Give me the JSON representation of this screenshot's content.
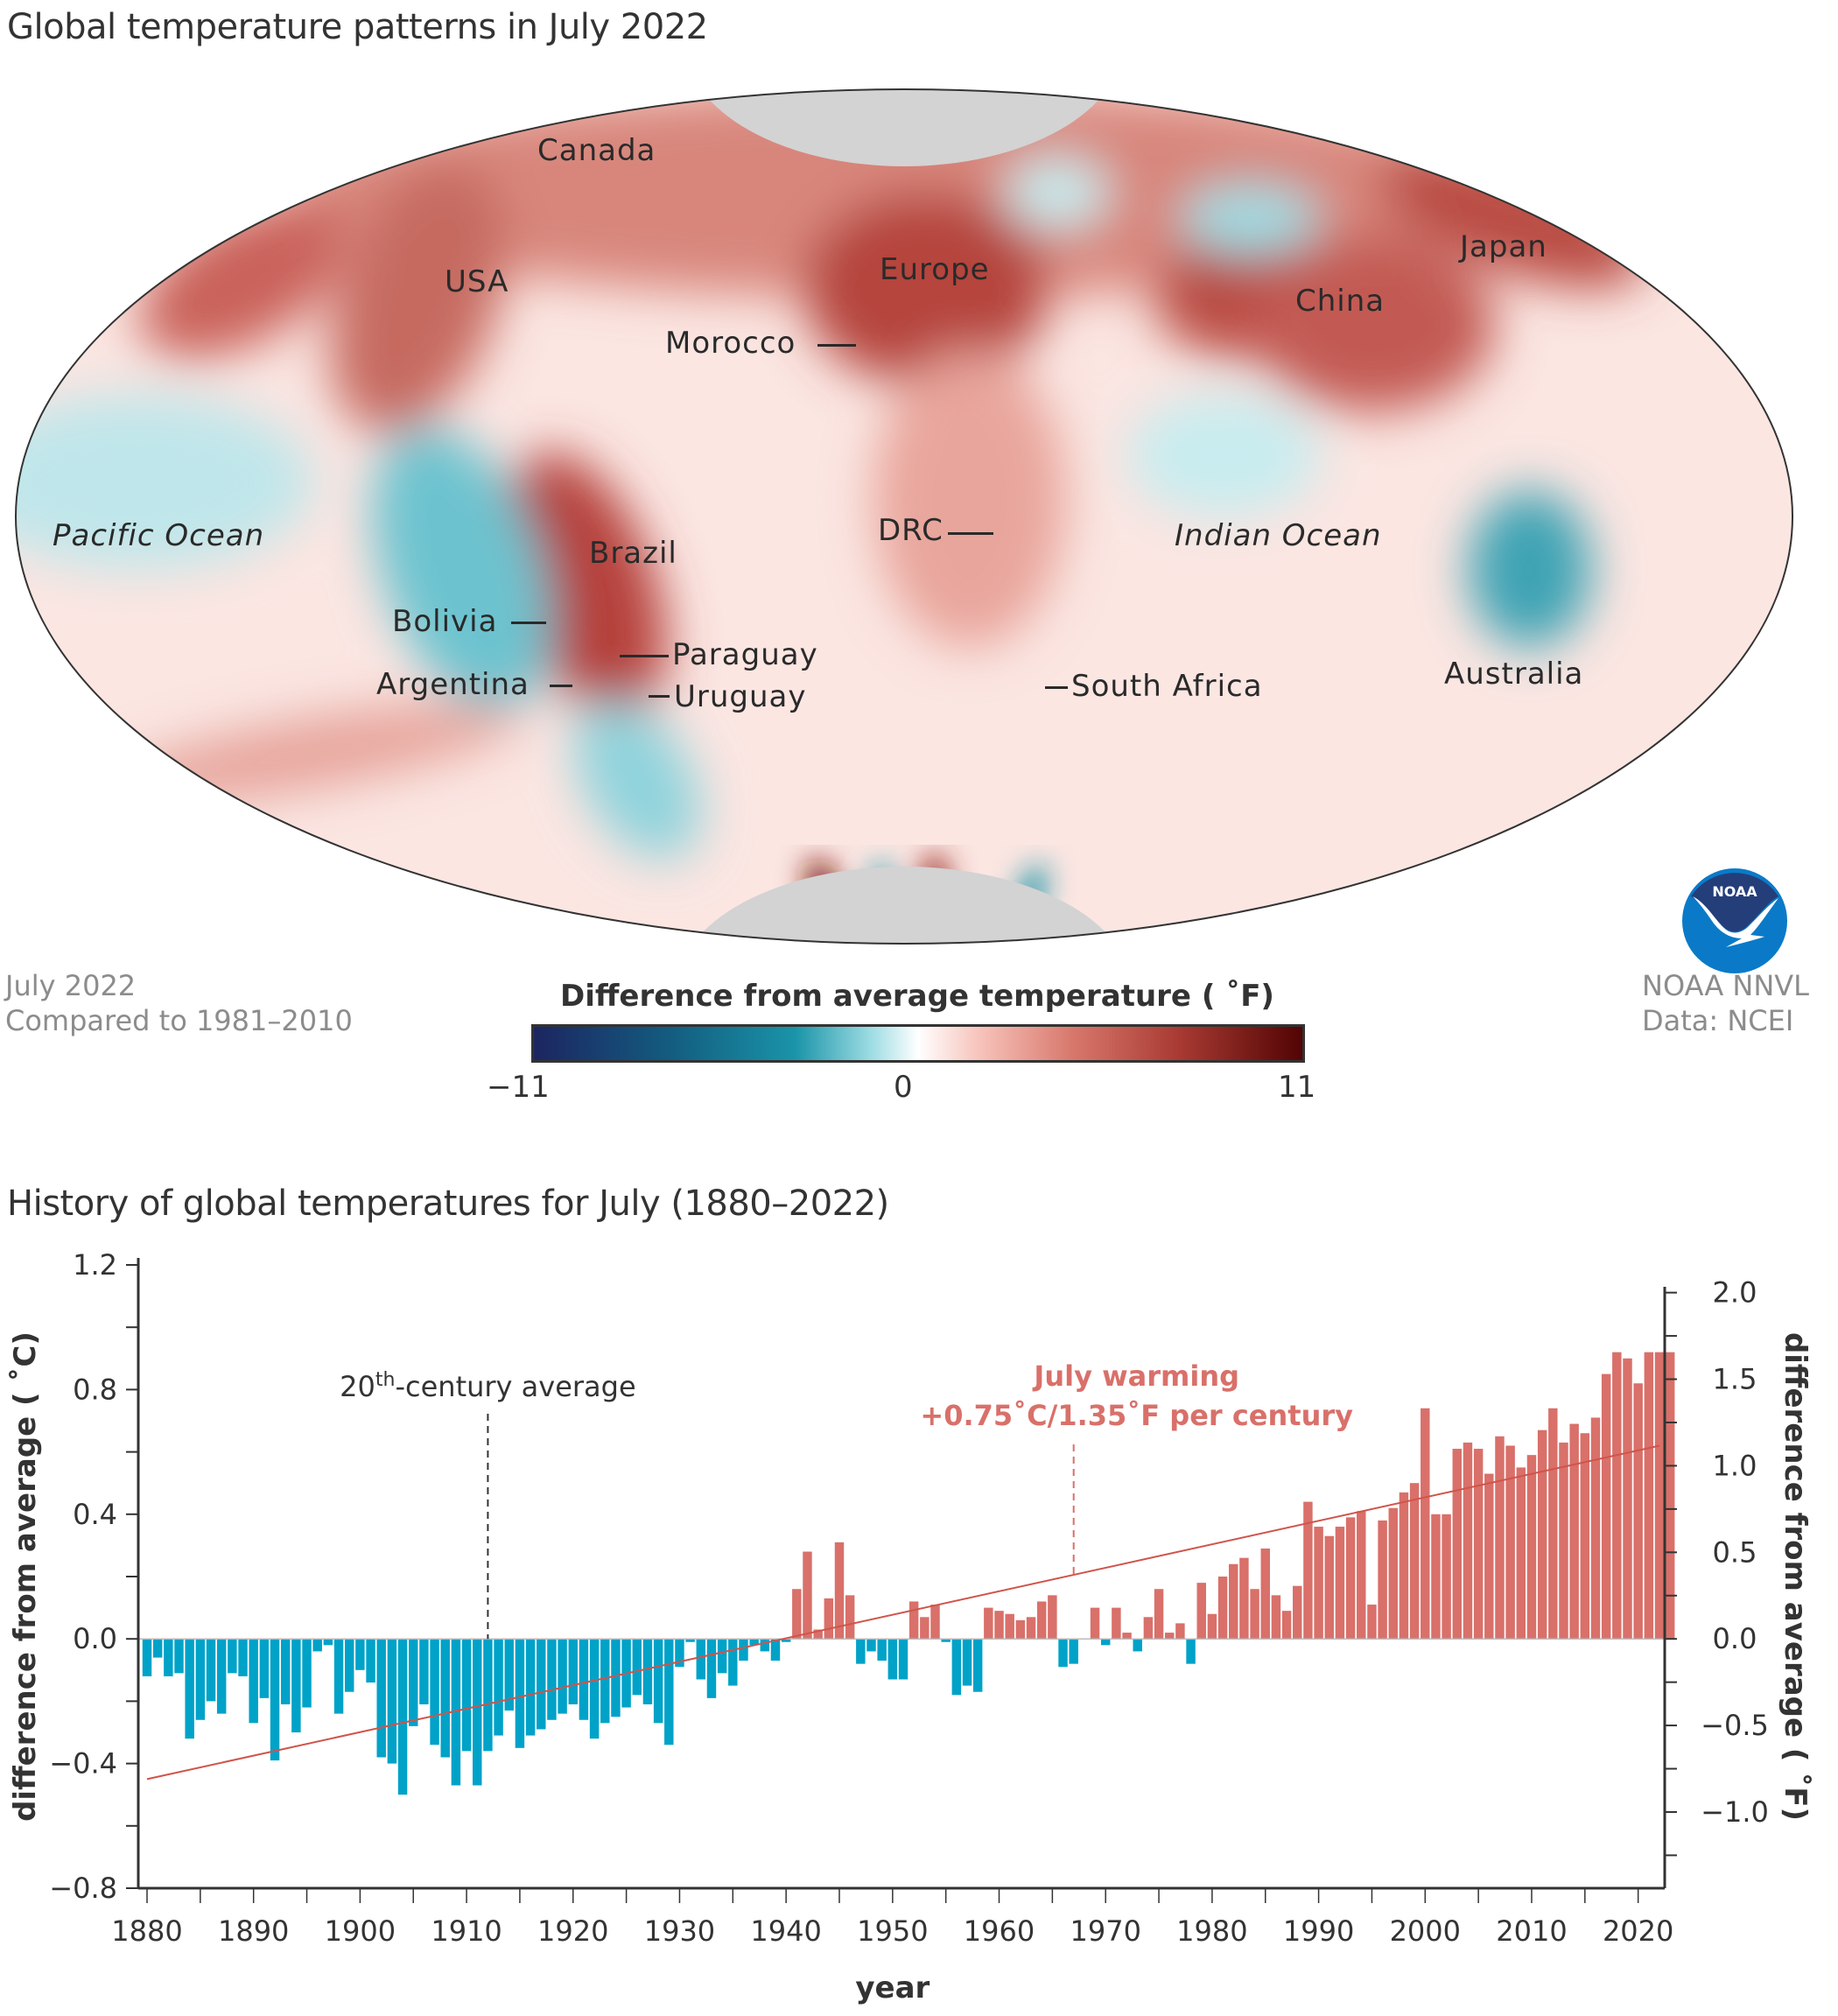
{
  "map": {
    "title": "Global temperature patterns in July 2022",
    "labels": [
      {
        "text": "Canada",
        "kind": "country",
        "leader": "none"
      },
      {
        "text": "USA",
        "kind": "country",
        "leader": "none"
      },
      {
        "text": "Europe",
        "kind": "region",
        "leader": "none"
      },
      {
        "text": "Morocco",
        "kind": "country",
        "leader": "right"
      },
      {
        "text": "China",
        "kind": "country",
        "leader": "none"
      },
      {
        "text": "Japan",
        "kind": "country",
        "leader": "none"
      },
      {
        "text": "Pacific Ocean",
        "kind": "ocean",
        "leader": "none"
      },
      {
        "text": "Brazil",
        "kind": "country",
        "leader": "none"
      },
      {
        "text": "DRC",
        "kind": "country",
        "leader": "right"
      },
      {
        "text": "Indian Ocean",
        "kind": "ocean",
        "leader": "none"
      },
      {
        "text": "Bolivia",
        "kind": "country",
        "leader": "right"
      },
      {
        "text": "Paraguay",
        "kind": "country",
        "leader": "left"
      },
      {
        "text": "Argentina",
        "kind": "country",
        "leader": "right"
      },
      {
        "text": "Uruguay",
        "kind": "country",
        "leader": "left"
      },
      {
        "text": "South Africa",
        "kind": "country",
        "leader": "left"
      },
      {
        "text": "Australia",
        "kind": "country",
        "leader": "none"
      }
    ],
    "footnote_left": [
      "July 2022",
      "Compared to 1981–2010"
    ],
    "footnote_right": [
      "NOAA NNVL",
      "Data: NCEI"
    ],
    "logo_text": "NOAA",
    "legend": {
      "title": "Difference from average temperature ( ˚F)",
      "min_label": "−11",
      "mid_label": "0",
      "max_label": "11",
      "range": [
        -11,
        11
      ],
      "colors": [
        "#1c2560",
        "#135d80",
        "#1a94a8",
        "#9fdde4",
        "#ffffff",
        "#f7c3bb",
        "#d8786c",
        "#a83a32",
        "#520404"
      ]
    },
    "polar_nodata_color": "#d3d3d3"
  },
  "chart_data": {
    "type": "bar",
    "title": "History of global temperatures for July (1880–2022)",
    "xlabel": "year",
    "ylabel": "difference from average ( ˚C)",
    "ylabel_right": "difference from average ( ˚F)",
    "xlim": [
      1880,
      2022
    ],
    "ylim": [
      -0.8,
      1.2
    ],
    "ylim_right": [
      -1.44,
      2.16
    ],
    "yticks": [
      "1.2",
      "0.8",
      "0.4",
      "0.0",
      "−0.4",
      "−0.8"
    ],
    "yticks_right": [
      "2.0",
      "1.5",
      "1.0",
      "0.5",
      "0.0",
      "−0.5",
      "−1.0"
    ],
    "xticks": [
      "1880",
      "1890",
      "1900",
      "1910",
      "1920",
      "1930",
      "1940",
      "1950",
      "1960",
      "1970",
      "1980",
      "1990",
      "2000",
      "2010",
      "2020"
    ],
    "colors": {
      "positive": "#d9706a",
      "negative": "#00a2c8",
      "trend": "#d0544a",
      "annotation": "#d9706a"
    },
    "trend": {
      "start_year": 1880,
      "start_value": -0.45,
      "end_year": 2022,
      "end_value": 0.62
    },
    "annotations": [
      {
        "text_pre": "20",
        "text_sup": "th",
        "text_post": "-century average",
        "year": 1912,
        "color": "#333333"
      },
      {
        "line1": "July warming",
        "line2": "+0.75˚C/1.35˚F per century",
        "year": 1967,
        "color": "#d9706a"
      }
    ],
    "start_year": 1880,
    "values": [
      -0.12,
      -0.06,
      -0.12,
      -0.11,
      -0.32,
      -0.26,
      -0.2,
      -0.24,
      -0.11,
      -0.12,
      -0.27,
      -0.19,
      -0.39,
      -0.21,
      -0.3,
      -0.22,
      -0.04,
      -0.02,
      -0.24,
      -0.17,
      -0.1,
      -0.14,
      -0.38,
      -0.4,
      -0.5,
      -0.28,
      -0.21,
      -0.34,
      -0.38,
      -0.47,
      -0.36,
      -0.47,
      -0.36,
      -0.31,
      -0.23,
      -0.35,
      -0.31,
      -0.29,
      -0.26,
      -0.24,
      -0.21,
      -0.26,
      -0.32,
      -0.27,
      -0.25,
      -0.22,
      -0.18,
      -0.21,
      -0.27,
      -0.34,
      -0.09,
      -0.01,
      -0.13,
      -0.19,
      -0.11,
      -0.15,
      -0.07,
      -0.02,
      -0.04,
      -0.07,
      -0.01,
      0.16,
      0.28,
      0.03,
      0.13,
      0.31,
      0.14,
      -0.08,
      -0.04,
      -0.07,
      -0.13,
      -0.13,
      0.12,
      0.07,
      0.11,
      -0.01,
      -0.18,
      -0.15,
      -0.17,
      0.1,
      0.09,
      0.08,
      0.06,
      0.07,
      0.12,
      0.14,
      -0.09,
      -0.08,
      0.0,
      0.1,
      -0.02,
      0.1,
      0.02,
      -0.04,
      0.07,
      0.16,
      0.02,
      0.05,
      -0.08,
      0.18,
      0.08,
      0.2,
      0.24,
      0.26,
      0.16,
      0.29,
      0.14,
      0.09,
      0.17,
      0.44,
      0.36,
      0.33,
      0.36,
      0.39,
      0.41,
      0.11,
      0.38,
      0.42,
      0.47,
      0.5,
      0.74,
      0.4,
      0.4,
      0.61,
      0.63,
      0.61,
      0.53,
      0.65,
      0.62,
      0.55,
      0.59,
      0.67,
      0.74,
      0.63,
      0.69,
      0.66,
      0.71,
      0.85,
      0.92,
      0.9,
      0.82,
      0.92,
      0.92,
      0.92
    ]
  }
}
